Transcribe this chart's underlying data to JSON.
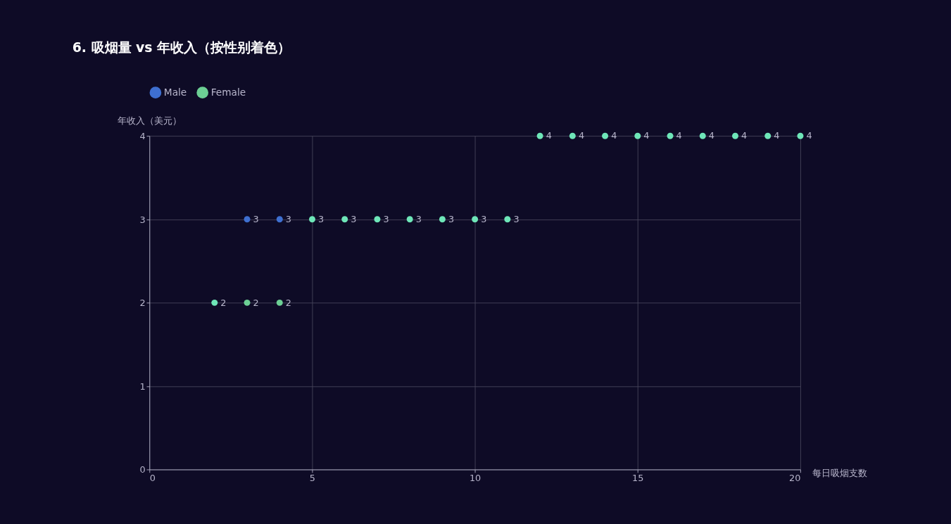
{
  "chart_data": {
    "type": "scatter",
    "title": "6. 吸烟量 vs 年收入（按性别着色）",
    "xlabel": "每日吸烟支数",
    "ylabel": "年收入（美元）",
    "series": [
      {
        "name": "Male",
        "color": "#3e6fd0",
        "x": [
          3,
          4
        ],
        "values": [
          3,
          3
        ]
      },
      {
        "name": "Female",
        "color": "#6ccf94",
        "x": [
          2,
          3,
          4,
          5,
          6,
          7,
          8,
          9,
          10,
          11,
          12,
          13,
          14,
          15,
          16,
          17,
          18,
          19,
          20
        ],
        "values": [
          2,
          2,
          2,
          3,
          3,
          3,
          3,
          3,
          3,
          3,
          4,
          4,
          4,
          4,
          4,
          4,
          4,
          4,
          4
        ],
        "colors": [
          "#6ee6b8",
          "#6ccf94",
          "#6ccf94",
          "#6ee6b8",
          "#6ee6b8",
          "#6ee6b8",
          "#6ee6b8",
          "#6ee6b8",
          "#6ee6b8",
          "#6ee6b8",
          "#6ee6b8",
          "#6ee6b8",
          "#6ee6b8",
          "#6ee6b8",
          "#6ee6b8",
          "#6ee6b8",
          "#6ee6b8",
          "#6ee6b8",
          "#6ee6b8"
        ]
      }
    ],
    "xlim": [
      0,
      20
    ],
    "xticks": [
      0,
      5,
      10,
      15,
      20
    ],
    "ylim": [
      0,
      4
    ],
    "yticks": [
      0,
      1,
      2,
      3,
      4
    ],
    "grid": true,
    "legend": "top",
    "marker": "circle",
    "data_labels": true
  }
}
